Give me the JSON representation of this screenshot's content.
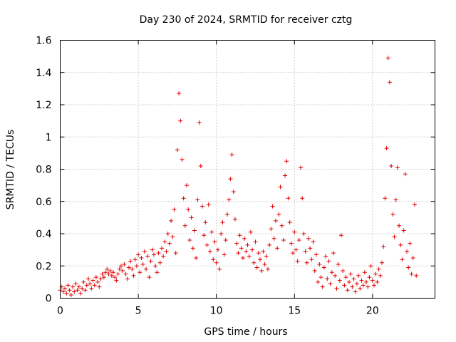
{
  "chart_data": {
    "type": "scatter",
    "title": "Day 230 of 2024, SRMTID for receiver cztg",
    "xlabel": "GPS time / hours",
    "ylabel": "SRMTID / TECUs",
    "xlim": [
      0,
      24
    ],
    "ylim": [
      0,
      1.6
    ],
    "xticks": [
      0,
      5,
      10,
      15,
      20
    ],
    "xtick_labels": [
      "0",
      "5",
      "10",
      "15",
      "20"
    ],
    "yticks": [
      0,
      0.2,
      0.4,
      0.6,
      0.8,
      1,
      1.2,
      1.4,
      1.6
    ],
    "ytick_labels": [
      "0",
      "0.2",
      "0.4",
      "0.6",
      "0.8",
      "1",
      "1.2",
      "1.4",
      "1.6"
    ],
    "grid": true,
    "marker": "plus",
    "series": [
      {
        "name": "SRMTID",
        "color": "#e00000",
        "points": [
          [
            0.0,
            0.05
          ],
          [
            0.1,
            0.07
          ],
          [
            0.2,
            0.04
          ],
          [
            0.3,
            0.06
          ],
          [
            0.4,
            0.03
          ],
          [
            0.5,
            0.08
          ],
          [
            0.6,
            0.05
          ],
          [
            0.7,
            0.02
          ],
          [
            0.8,
            0.07
          ],
          [
            0.9,
            0.04
          ],
          [
            1.0,
            0.09
          ],
          [
            1.1,
            0.05
          ],
          [
            1.2,
            0.07
          ],
          [
            1.3,
            0.03
          ],
          [
            1.4,
            0.06
          ],
          [
            1.5,
            0.1
          ],
          [
            1.6,
            0.05
          ],
          [
            1.7,
            0.08
          ],
          [
            1.8,
            0.12
          ],
          [
            1.9,
            0.09
          ],
          [
            2.0,
            0.06
          ],
          [
            2.1,
            0.11
          ],
          [
            2.2,
            0.08
          ],
          [
            2.3,
            0.13
          ],
          [
            2.4,
            0.1
          ],
          [
            2.5,
            0.07
          ],
          [
            2.6,
            0.12
          ],
          [
            2.7,
            0.15
          ],
          [
            2.8,
            0.13
          ],
          [
            2.9,
            0.16
          ],
          [
            3.0,
            0.18
          ],
          [
            3.1,
            0.15
          ],
          [
            3.2,
            0.17
          ],
          [
            3.3,
            0.14
          ],
          [
            3.4,
            0.16
          ],
          [
            3.5,
            0.13
          ],
          [
            3.6,
            0.11
          ],
          [
            3.7,
            0.15
          ],
          [
            3.8,
            0.18
          ],
          [
            3.9,
            0.2
          ],
          [
            4.0,
            0.17
          ],
          [
            4.1,
            0.21
          ],
          [
            4.2,
            0.15
          ],
          [
            4.3,
            0.12
          ],
          [
            4.4,
            0.19
          ],
          [
            4.5,
            0.23
          ],
          [
            4.6,
            0.18
          ],
          [
            4.7,
            0.14
          ],
          [
            4.8,
            0.24
          ],
          [
            4.9,
            0.2
          ],
          [
            5.0,
            0.27
          ],
          [
            5.1,
            0.16
          ],
          [
            5.2,
            0.25
          ],
          [
            5.3,
            0.21
          ],
          [
            5.4,
            0.29
          ],
          [
            5.5,
            0.18
          ],
          [
            5.6,
            0.26
          ],
          [
            5.7,
            0.13
          ],
          [
            5.8,
            0.23
          ],
          [
            5.9,
            0.3
          ],
          [
            6.0,
            0.27
          ],
          [
            6.1,
            0.2
          ],
          [
            6.2,
            0.16
          ],
          [
            6.3,
            0.28
          ],
          [
            6.4,
            0.22
          ],
          [
            6.5,
            0.31
          ],
          [
            6.6,
            0.26
          ],
          [
            6.7,
            0.35
          ],
          [
            6.8,
            0.29
          ],
          [
            6.9,
            0.4
          ],
          [
            7.0,
            0.34
          ],
          [
            7.1,
            0.48
          ],
          [
            7.2,
            0.38
          ],
          [
            7.3,
            0.55
          ],
          [
            7.4,
            0.28
          ],
          [
            7.5,
            0.92
          ],
          [
            7.6,
            1.27
          ],
          [
            7.7,
            1.1
          ],
          [
            7.8,
            0.86
          ],
          [
            7.9,
            0.62
          ],
          [
            8.0,
            0.45
          ],
          [
            8.1,
            0.7
          ],
          [
            8.2,
            0.55
          ],
          [
            8.3,
            0.36
          ],
          [
            8.4,
            0.5
          ],
          [
            8.5,
            0.31
          ],
          [
            8.6,
            0.42
          ],
          [
            8.7,
            0.25
          ],
          [
            8.8,
            0.61
          ],
          [
            8.9,
            1.09
          ],
          [
            9.0,
            0.82
          ],
          [
            9.1,
            0.57
          ],
          [
            9.2,
            0.39
          ],
          [
            9.3,
            0.47
          ],
          [
            9.4,
            0.33
          ],
          [
            9.5,
            0.58
          ],
          [
            9.6,
            0.29
          ],
          [
            9.7,
            0.41
          ],
          [
            9.8,
            0.24
          ],
          [
            9.9,
            0.35
          ],
          [
            10.0,
            0.22
          ],
          [
            10.1,
            0.3
          ],
          [
            10.2,
            0.18
          ],
          [
            10.3,
            0.4
          ],
          [
            10.4,
            0.47
          ],
          [
            10.5,
            0.27
          ],
          [
            10.6,
            0.36
          ],
          [
            10.7,
            0.52
          ],
          [
            10.8,
            0.61
          ],
          [
            10.9,
            0.74
          ],
          [
            11.0,
            0.89
          ],
          [
            11.1,
            0.66
          ],
          [
            11.2,
            0.49
          ],
          [
            11.3,
            0.34
          ],
          [
            11.4,
            0.28
          ],
          [
            11.5,
            0.39
          ],
          [
            11.6,
            0.31
          ],
          [
            11.7,
            0.25
          ],
          [
            11.8,
            0.37
          ],
          [
            11.9,
            0.29
          ],
          [
            12.0,
            0.33
          ],
          [
            12.1,
            0.26
          ],
          [
            12.2,
            0.41
          ],
          [
            12.3,
            0.3
          ],
          [
            12.4,
            0.22
          ],
          [
            12.5,
            0.35
          ],
          [
            12.6,
            0.19
          ],
          [
            12.7,
            0.28
          ],
          [
            12.8,
            0.24
          ],
          [
            12.9,
            0.17
          ],
          [
            13.0,
            0.29
          ],
          [
            13.1,
            0.21
          ],
          [
            13.2,
            0.26
          ],
          [
            13.3,
            0.18
          ],
          [
            13.4,
            0.33
          ],
          [
            13.5,
            0.43
          ],
          [
            13.6,
            0.57
          ],
          [
            13.7,
            0.37
          ],
          [
            13.8,
            0.48
          ],
          [
            13.9,
            0.31
          ],
          [
            14.0,
            0.52
          ],
          [
            14.1,
            0.69
          ],
          [
            14.2,
            0.45
          ],
          [
            14.3,
            0.36
          ],
          [
            14.4,
            0.76
          ],
          [
            14.5,
            0.85
          ],
          [
            14.6,
            0.62
          ],
          [
            14.7,
            0.47
          ],
          [
            14.8,
            0.34
          ],
          [
            14.9,
            0.28
          ],
          [
            15.0,
            0.41
          ],
          [
            15.1,
            0.3
          ],
          [
            15.2,
            0.23
          ],
          [
            15.3,
            0.36
          ],
          [
            15.4,
            0.81
          ],
          [
            15.5,
            0.62
          ],
          [
            15.6,
            0.4
          ],
          [
            15.7,
            0.29
          ],
          [
            15.8,
            0.22
          ],
          [
            15.9,
            0.37
          ],
          [
            16.0,
            0.31
          ],
          [
            16.1,
            0.24
          ],
          [
            16.2,
            0.35
          ],
          [
            16.3,
            0.17
          ],
          [
            16.4,
            0.27
          ],
          [
            16.5,
            0.1
          ],
          [
            16.6,
            0.21
          ],
          [
            16.7,
            0.13
          ],
          [
            16.8,
            0.07
          ],
          [
            16.9,
            0.19
          ],
          [
            17.0,
            0.26
          ],
          [
            17.1,
            0.12
          ],
          [
            17.2,
            0.23
          ],
          [
            17.3,
            0.09
          ],
          [
            17.4,
            0.16
          ],
          [
            17.5,
            0.28
          ],
          [
            17.6,
            0.14
          ],
          [
            17.7,
            0.06
          ],
          [
            17.8,
            0.21
          ],
          [
            17.9,
            0.11
          ],
          [
            18.0,
            0.39
          ],
          [
            18.1,
            0.17
          ],
          [
            18.2,
            0.08
          ],
          [
            18.3,
            0.13
          ],
          [
            18.4,
            0.05
          ],
          [
            18.5,
            0.1
          ],
          [
            18.6,
            0.15
          ],
          [
            18.7,
            0.07
          ],
          [
            18.8,
            0.12
          ],
          [
            18.9,
            0.04
          ],
          [
            19.0,
            0.09
          ],
          [
            19.1,
            0.14
          ],
          [
            19.2,
            0.06
          ],
          [
            19.3,
            0.11
          ],
          [
            19.4,
            0.08
          ],
          [
            19.5,
            0.16
          ],
          [
            19.6,
            0.1
          ],
          [
            19.7,
            0.07
          ],
          [
            19.8,
            0.13
          ],
          [
            19.9,
            0.2
          ],
          [
            20.0,
            0.11
          ],
          [
            20.1,
            0.08
          ],
          [
            20.2,
            0.15
          ],
          [
            20.3,
            0.1
          ],
          [
            20.4,
            0.18
          ],
          [
            20.5,
            0.14
          ],
          [
            20.6,
            0.22
          ],
          [
            20.7,
            0.32
          ],
          [
            20.8,
            0.62
          ],
          [
            20.9,
            0.93
          ],
          [
            21.0,
            1.49
          ],
          [
            21.1,
            1.34
          ],
          [
            21.2,
            0.82
          ],
          [
            21.3,
            0.52
          ],
          [
            21.4,
            0.38
          ],
          [
            21.5,
            0.61
          ],
          [
            21.6,
            0.81
          ],
          [
            21.7,
            0.45
          ],
          [
            21.8,
            0.33
          ],
          [
            21.9,
            0.24
          ],
          [
            22.0,
            0.42
          ],
          [
            22.1,
            0.77
          ],
          [
            22.2,
            0.29
          ],
          [
            22.3,
            0.19
          ],
          [
            22.4,
            0.34
          ],
          [
            22.5,
            0.15
          ],
          [
            22.6,
            0.25
          ],
          [
            22.7,
            0.58
          ],
          [
            22.8,
            0.14
          ]
        ]
      }
    ]
  }
}
